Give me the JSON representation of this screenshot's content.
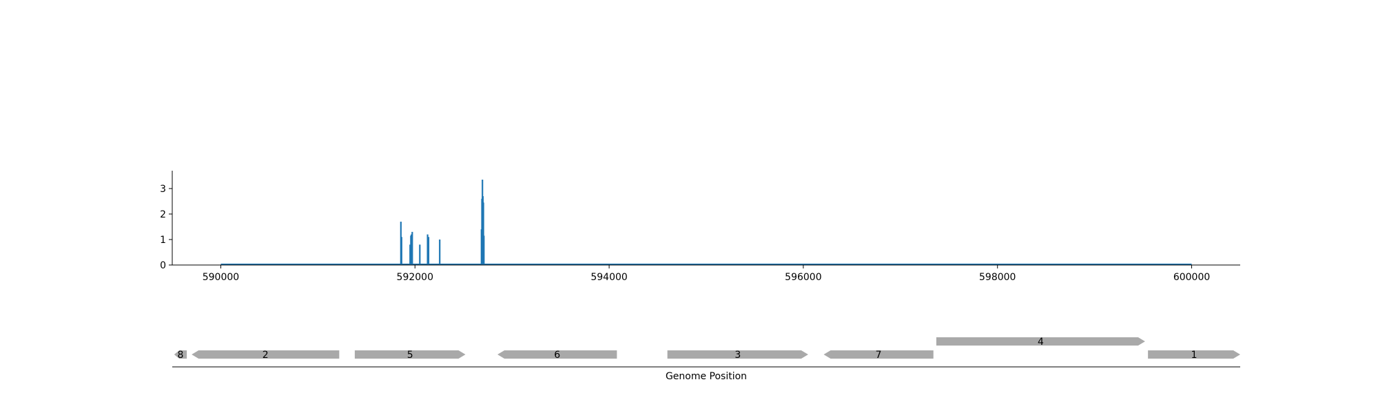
{
  "chart_data": [
    {
      "type": "bar",
      "title": "",
      "xlabel": "",
      "ylabel": "",
      "xlim": [
        589500,
        600500
      ],
      "ylim": [
        0,
        3.7
      ],
      "grid": false,
      "legend": "none",
      "x_ticks": [
        "590000",
        "592000",
        "594000",
        "596000",
        "598000",
        "600000"
      ],
      "y_ticks": [
        "0",
        "1",
        "2",
        "3"
      ],
      "baseline_range": [
        590000,
        600000
      ],
      "series": [
        {
          "color": "#1f77b4",
          "x": [
            591855,
            591862,
            591950,
            591958,
            591964,
            591972,
            592050,
            592130,
            592140,
            592255,
            592685,
            592690,
            592695,
            592700,
            592705,
            592710
          ],
          "values": [
            1.7,
            1.1,
            0.8,
            1.15,
            1.2,
            1.3,
            0.8,
            1.2,
            1.1,
            1.0,
            1.4,
            2.6,
            3.35,
            2.7,
            2.45,
            1.15
          ]
        }
      ]
    },
    {
      "type": "gene-track",
      "xlabel": "Genome Position",
      "xlim": [
        589500,
        600500
      ],
      "color": "#a9a9a9",
      "genes": [
        {
          "label": "8",
          "start": 589520,
          "end": 589650,
          "strand": "-",
          "row": 0
        },
        {
          "label": "2",
          "start": 589700,
          "end": 591220,
          "strand": "-",
          "row": 0
        },
        {
          "label": "5",
          "start": 591380,
          "end": 592520,
          "strand": "+",
          "row": 0
        },
        {
          "label": "6",
          "start": 592850,
          "end": 594080,
          "strand": "-",
          "row": 0
        },
        {
          "label": "3",
          "start": 594600,
          "end": 596050,
          "strand": "+",
          "row": 0
        },
        {
          "label": "7",
          "start": 596210,
          "end": 597340,
          "strand": "-",
          "row": 0
        },
        {
          "label": "4",
          "start": 597370,
          "end": 599520,
          "strand": "+",
          "row": 1
        },
        {
          "label": "1",
          "start": 599550,
          "end": 600500,
          "strand": "+",
          "row": 0
        }
      ]
    }
  ]
}
